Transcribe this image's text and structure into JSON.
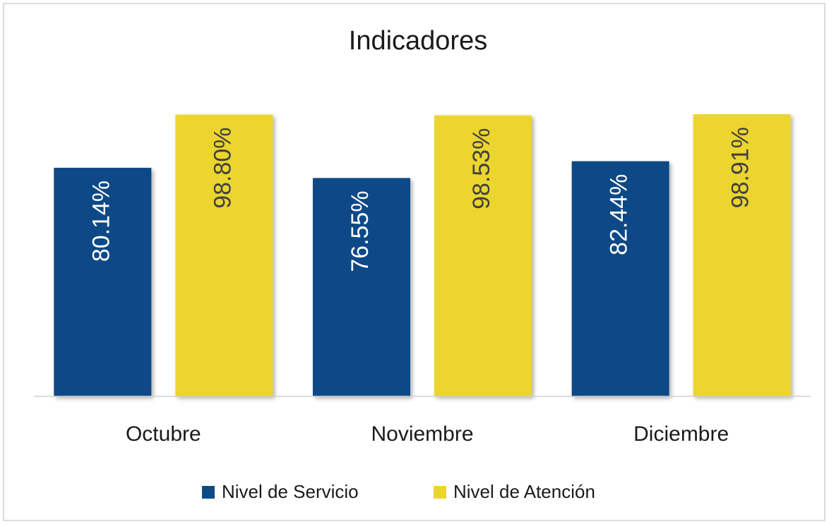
{
  "chart_data": {
    "type": "bar",
    "title": "Indicadores",
    "categories": [
      "Octubre",
      "Noviembre",
      "Diciembre"
    ],
    "series": [
      {
        "name": "Nivel de Servicio",
        "color": "#0e4a86",
        "values": [
          80.14,
          76.55,
          82.44
        ],
        "value_labels": [
          "80.14%",
          "76.55%",
          "82.44%"
        ]
      },
      {
        "name": "Nivel de Atención",
        "color": "#ecd52e",
        "values": [
          98.8,
          98.53,
          98.91
        ],
        "value_labels": [
          "98.80%",
          "98.53%",
          "98.91%"
        ]
      }
    ],
    "legend": "bottom"
  }
}
